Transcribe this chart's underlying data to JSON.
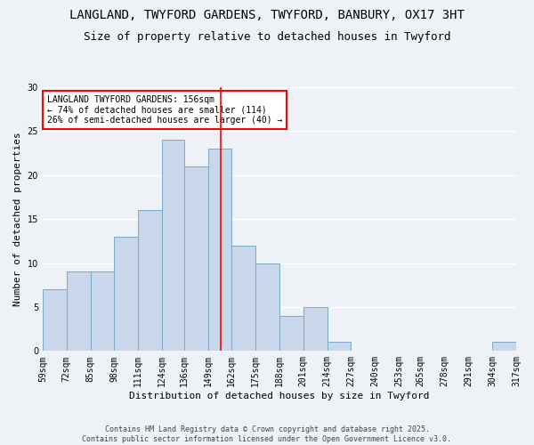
{
  "title": "LANGLAND, TWYFORD GARDENS, TWYFORD, BANBURY, OX17 3HT",
  "subtitle": "Size of property relative to detached houses in Twyford",
  "xlabel": "Distribution of detached houses by size in Twyford",
  "ylabel": "Number of detached properties",
  "bar_color": "#c8d8ea",
  "bar_edge_color": "#7aaac8",
  "vline_x": 156,
  "vline_color": "red",
  "bin_edges": [
    59,
    72,
    85,
    98,
    111,
    124,
    136,
    149,
    162,
    175,
    188,
    201,
    214,
    227,
    240,
    253,
    265,
    278,
    291,
    304,
    317
  ],
  "bin_labels": [
    "59sqm",
    "72sqm",
    "85sqm",
    "98sqm",
    "111sqm",
    "124sqm",
    "136sqm",
    "149sqm",
    "162sqm",
    "175sqm",
    "188sqm",
    "201sqm",
    "214sqm",
    "227sqm",
    "240sqm",
    "253sqm",
    "265sqm",
    "278sqm",
    "291sqm",
    "304sqm",
    "317sqm"
  ],
  "counts": [
    7,
    9,
    9,
    13,
    16,
    24,
    21,
    23,
    12,
    10,
    4,
    5,
    1,
    0,
    0,
    0,
    0,
    0,
    0,
    1
  ],
  "ylim": [
    0,
    30
  ],
  "yticks": [
    0,
    5,
    10,
    15,
    20,
    25,
    30
  ],
  "annotation_text": "LANGLAND TWYFORD GARDENS: 156sqm\n← 74% of detached houses are smaller (114)\n26% of semi-detached houses are larger (40) →",
  "annotation_box_color": "white",
  "annotation_box_edge_color": "red",
  "footer_text": "Contains HM Land Registry data © Crown copyright and database right 2025.\nContains public sector information licensed under the Open Government Licence v3.0.",
  "background_color": "#eef2f7",
  "grid_color": "white",
  "title_fontsize": 10,
  "subtitle_fontsize": 9,
  "xlabel_fontsize": 8,
  "ylabel_fontsize": 8,
  "tick_fontsize": 7,
  "annot_fontsize": 7,
  "footer_fontsize": 6
}
